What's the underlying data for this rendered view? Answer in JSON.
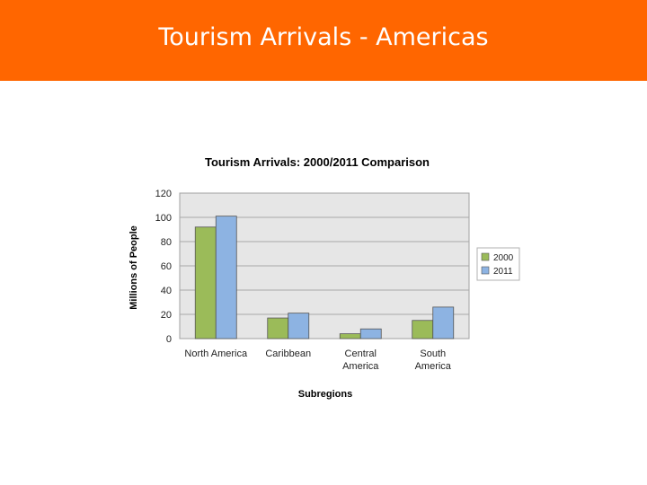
{
  "slide": {
    "title": "Tourism Arrivals - Americas"
  },
  "chart_data": {
    "type": "bar",
    "title": "Tourism Arrivals: 2000/2011 Comparison",
    "xlabel": "Subregions",
    "ylabel": "Millions of People",
    "categories": [
      [
        "North America"
      ],
      [
        "Caribbean"
      ],
      [
        "Central",
        "America"
      ],
      [
        "South",
        "America"
      ]
    ],
    "series": [
      {
        "name": "2000",
        "values": [
          92,
          17,
          4,
          15
        ],
        "color": "#9bbb59"
      },
      {
        "name": "2011",
        "values": [
          101,
          21,
          8,
          26
        ],
        "color": "#8db3e2"
      }
    ],
    "ylim": [
      0,
      120
    ],
    "yticks": [
      0,
      20,
      40,
      60,
      80,
      100,
      120
    ],
    "grid": true,
    "legend_position": "right"
  }
}
